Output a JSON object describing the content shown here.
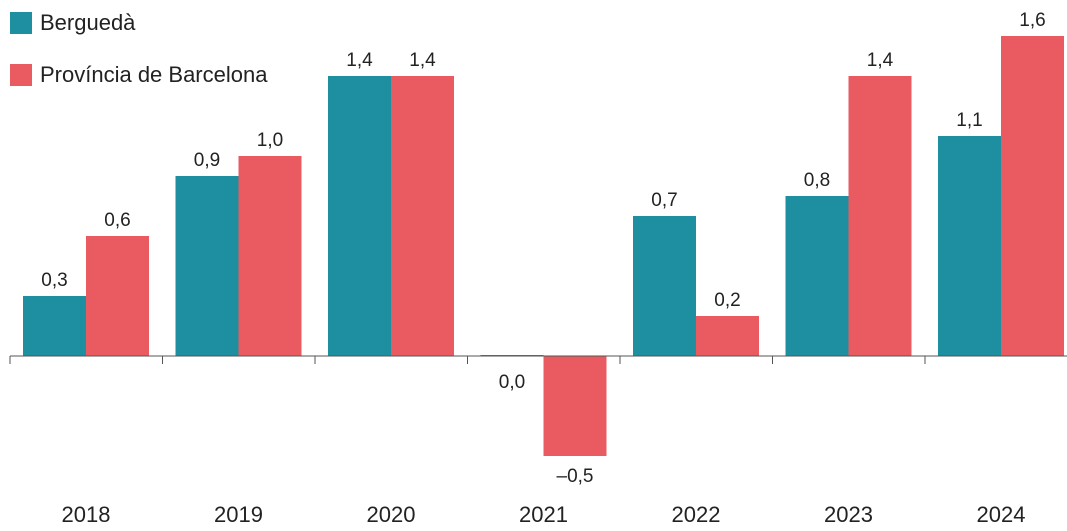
{
  "chart_data": {
    "type": "bar",
    "categories": [
      "2018",
      "2019",
      "2020",
      "2021",
      "2022",
      "2023",
      "2024"
    ],
    "series": [
      {
        "name": "Berguedà",
        "color": "#1e8fa1",
        "values": [
          0.3,
          0.9,
          1.4,
          0.0,
          0.7,
          0.8,
          1.1
        ],
        "labels": [
          "0,3",
          "0,9",
          "1,4",
          "0,0",
          "0,7",
          "0,8",
          "1,1"
        ]
      },
      {
        "name": "Província de Barcelona",
        "color": "#e95b60",
        "values": [
          0.6,
          1.0,
          1.4,
          -0.5,
          0.2,
          1.4,
          1.6
        ],
        "labels": [
          "0,6",
          "1,0",
          "1,4",
          "–0,5",
          "0,2",
          "1,4",
          "1,6"
        ]
      }
    ],
    "title": "",
    "xlabel": "",
    "ylabel": "",
    "ylim": [
      -0.65,
      1.75
    ],
    "grid": false,
    "legend_position": "top-left",
    "baseline_color": "#555555"
  }
}
